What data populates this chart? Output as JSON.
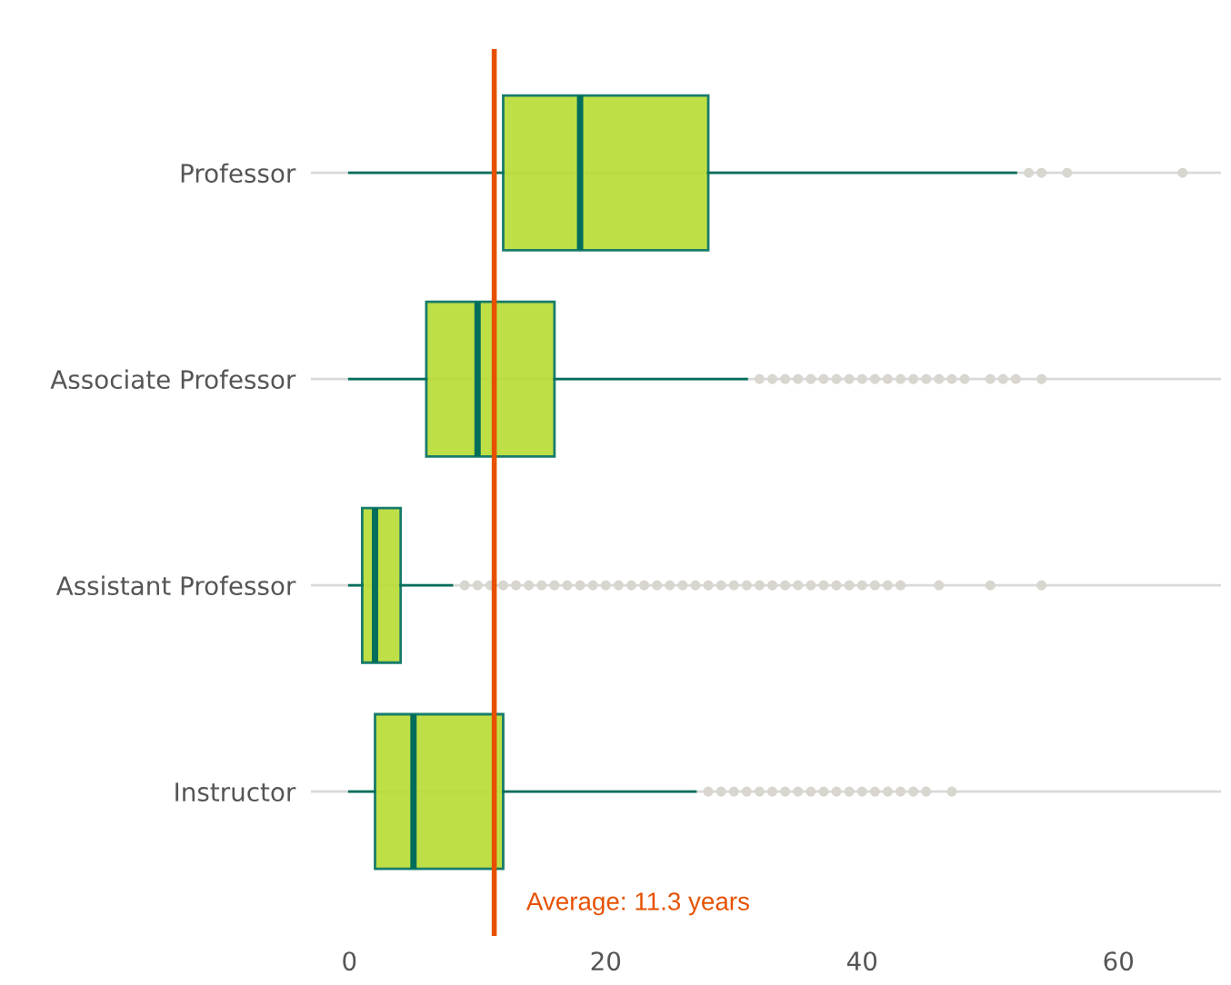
{
  "chart_data": {
    "type": "box",
    "orientation": "horizontal",
    "categories": [
      "Professor",
      "Associate Professor",
      "Assistant Professor",
      "Instructor"
    ],
    "series": [
      {
        "color": "#b9dc32",
        "boxes": [
          {
            "low": 0,
            "q1": 12,
            "median": 18,
            "q3": 28,
            "high": 52,
            "outliers": [
              53,
              54,
              56,
              65
            ]
          },
          {
            "low": 0,
            "q1": 6,
            "median": 10,
            "q3": 16,
            "high": 31,
            "outliers": [
              32,
              33,
              34,
              35,
              36,
              37,
              38,
              39,
              40,
              41,
              42,
              43,
              44,
              45,
              46,
              47,
              48,
              50,
              51,
              52,
              54
            ]
          },
          {
            "low": 0,
            "q1": 1,
            "median": 2,
            "q3": 4,
            "high": 8,
            "outliers": [
              9,
              10,
              11,
              12,
              13,
              14,
              15,
              16,
              17,
              18,
              19,
              20,
              21,
              22,
              23,
              24,
              25,
              26,
              27,
              28,
              29,
              30,
              31,
              32,
              33,
              34,
              35,
              36,
              37,
              38,
              39,
              40,
              41,
              42,
              43,
              46,
              50,
              54
            ]
          },
          {
            "low": 0,
            "q1": 2,
            "median": 5,
            "q3": 12,
            "high": 27,
            "outliers": [
              28,
              29,
              30,
              31,
              32,
              33,
              34,
              35,
              36,
              37,
              38,
              39,
              40,
              41,
              42,
              43,
              44,
              45,
              47
            ]
          }
        ]
      }
    ],
    "xlim": [
      -3,
      68
    ],
    "xticks": [
      0,
      20,
      40,
      60
    ],
    "grid": "y",
    "ref_lines": [
      {
        "axis": "x",
        "value": 11.3,
        "label": "Average: 11.3 years",
        "color": "#e65100"
      }
    ]
  }
}
